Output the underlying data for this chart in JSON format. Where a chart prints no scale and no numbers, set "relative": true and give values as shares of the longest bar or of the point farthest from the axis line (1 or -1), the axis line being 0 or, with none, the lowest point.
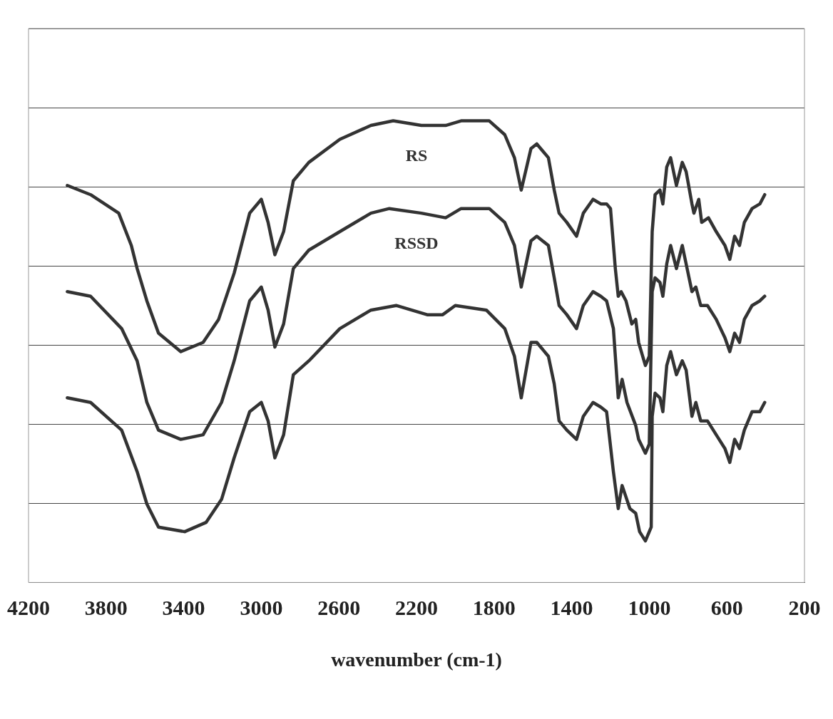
{
  "chart_data": {
    "type": "line",
    "xlabel": "wavenumber (cm-1)",
    "relative": true,
    "xlim": [
      4200,
      200
    ],
    "xticks": [
      4200,
      3800,
      3400,
      3000,
      2600,
      2200,
      1800,
      1400,
      1000,
      600,
      200
    ],
    "grid": "y",
    "legend": false,
    "marker": "none",
    "line_style": "solid",
    "series": [
      {
        "name": "RS",
        "color": "#333333",
        "x": [
          4000,
          3880,
          3735,
          3670,
          3640,
          3590,
          3530,
          3415,
          3300,
          3220,
          3140,
          3060,
          3000,
          2965,
          2930,
          2885,
          2835,
          2755,
          2595,
          2435,
          2320,
          2175,
          2050,
          1970,
          1825,
          1745,
          1695,
          1660,
          1610,
          1580,
          1520,
          1490,
          1465,
          1425,
          1375,
          1340,
          1290,
          1250,
          1220,
          1200,
          1175,
          1160,
          1145,
          1120,
          1090,
          1070,
          1055,
          1020,
          1000,
          985,
          970,
          945,
          930,
          910,
          890,
          860,
          830,
          810,
          780,
          770,
          745,
          730,
          695,
          655,
          610,
          585,
          560,
          535,
          510,
          470,
          430,
          405
        ],
        "values": [
          0.86,
          0.84,
          0.8,
          0.73,
          0.68,
          0.61,
          0.54,
          0.5,
          0.52,
          0.57,
          0.67,
          0.8,
          0.83,
          0.78,
          0.71,
          0.76,
          0.87,
          0.91,
          0.96,
          0.99,
          1,
          0.99,
          0.99,
          1,
          1,
          0.97,
          0.92,
          0.85,
          0.94,
          0.95,
          0.92,
          0.85,
          0.8,
          0.78,
          0.75,
          0.8,
          0.83,
          0.82,
          0.82,
          0.81,
          0.68,
          0.62,
          0.63,
          0.61,
          0.56,
          0.57,
          0.52,
          0.47,
          0.49,
          0.76,
          0.84,
          0.85,
          0.82,
          0.9,
          0.92,
          0.86,
          0.91,
          0.89,
          0.82,
          0.8,
          0.83,
          0.78,
          0.79,
          0.76,
          0.73,
          0.7,
          0.75,
          0.73,
          0.78,
          0.81,
          0.82,
          0.84
        ]
      },
      {
        "name": "RSSD",
        "color": "#333333",
        "x": [
          4000,
          3880,
          3720,
          3640,
          3590,
          3530,
          3415,
          3300,
          3205,
          3140,
          3060,
          3000,
          2965,
          2930,
          2885,
          2835,
          2755,
          2595,
          2435,
          2340,
          2175,
          2050,
          1970,
          1825,
          1745,
          1695,
          1660,
          1610,
          1580,
          1520,
          1490,
          1465,
          1425,
          1375,
          1340,
          1290,
          1250,
          1220,
          1185,
          1160,
          1140,
          1115,
          1070,
          1055,
          1020,
          1000,
          985,
          970,
          945,
          930,
          910,
          890,
          860,
          830,
          810,
          780,
          760,
          735,
          700,
          655,
          610,
          585,
          560,
          535,
          510,
          470,
          430,
          405
        ],
        "values": [
          0.63,
          0.62,
          0.55,
          0.48,
          0.39,
          0.33,
          0.31,
          0.32,
          0.39,
          0.48,
          0.61,
          0.64,
          0.59,
          0.51,
          0.56,
          0.68,
          0.72,
          0.76,
          0.8,
          0.81,
          0.8,
          0.79,
          0.81,
          0.81,
          0.78,
          0.73,
          0.64,
          0.74,
          0.75,
          0.73,
          0.66,
          0.6,
          0.58,
          0.55,
          0.6,
          0.63,
          0.62,
          0.61,
          0.55,
          0.4,
          0.44,
          0.39,
          0.34,
          0.31,
          0.28,
          0.3,
          0.63,
          0.66,
          0.65,
          0.62,
          0.69,
          0.73,
          0.68,
          0.73,
          0.69,
          0.63,
          0.64,
          0.6,
          0.6,
          0.57,
          0.53,
          0.5,
          0.54,
          0.52,
          0.57,
          0.6,
          0.61,
          0.62
        ]
      },
      {
        "color": "#333333",
        "x": [
          4000,
          3880,
          3720,
          3640,
          3590,
          3530,
          3395,
          3285,
          3205,
          3140,
          3060,
          3000,
          2965,
          2930,
          2885,
          2835,
          2755,
          2595,
          2435,
          2305,
          2145,
          2065,
          2000,
          1840,
          1745,
          1695,
          1660,
          1610,
          1580,
          1520,
          1490,
          1465,
          1425,
          1375,
          1340,
          1290,
          1250,
          1220,
          1185,
          1160,
          1140,
          1100,
          1070,
          1050,
          1020,
          990,
          985,
          970,
          945,
          930,
          910,
          890,
          860,
          830,
          810,
          780,
          760,
          735,
          700,
          655,
          610,
          585,
          560,
          535,
          510,
          470,
          430,
          405
        ],
        "values": [
          0.4,
          0.39,
          0.33,
          0.24,
          0.17,
          0.12,
          0.11,
          0.13,
          0.18,
          0.27,
          0.37,
          0.39,
          0.35,
          0.27,
          0.32,
          0.45,
          0.48,
          0.55,
          0.59,
          0.6,
          0.58,
          0.58,
          0.6,
          0.59,
          0.55,
          0.49,
          0.4,
          0.52,
          0.52,
          0.49,
          0.43,
          0.35,
          0.33,
          0.31,
          0.36,
          0.39,
          0.38,
          0.37,
          0.24,
          0.16,
          0.21,
          0.16,
          0.15,
          0.11,
          0.09,
          0.12,
          0.36,
          0.41,
          0.4,
          0.37,
          0.47,
          0.5,
          0.45,
          0.48,
          0.46,
          0.36,
          0.39,
          0.35,
          0.35,
          0.32,
          0.29,
          0.26,
          0.31,
          0.29,
          0.33,
          0.37,
          0.37,
          0.39
        ]
      }
    ]
  }
}
